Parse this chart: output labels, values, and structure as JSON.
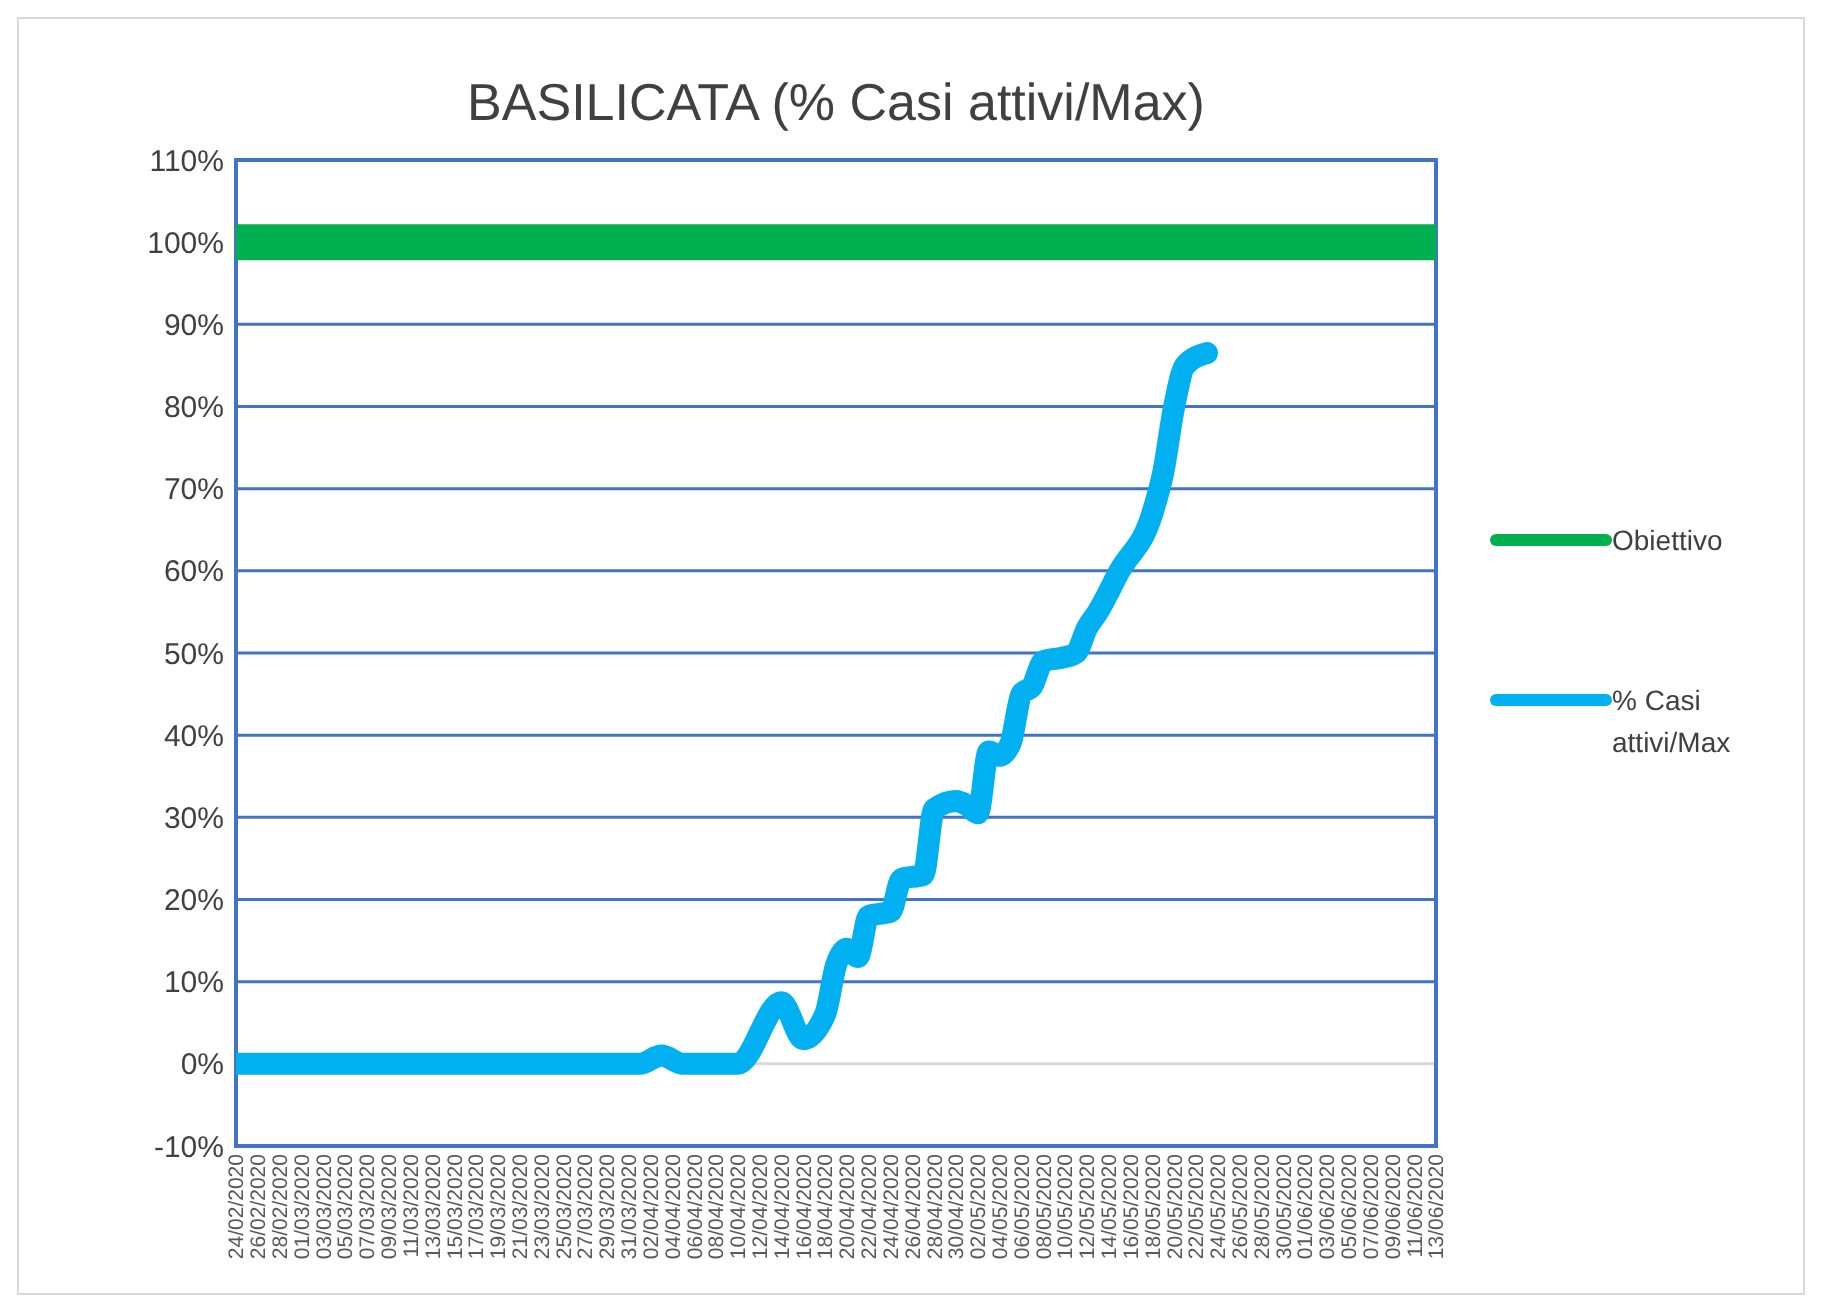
{
  "chart_data": {
    "type": "line",
    "title": "BASILICATA (% Casi attivi/Max)",
    "xlim": [
      "2020-02-24",
      "2020-06-13"
    ],
    "xticks": [
      {
        "value": "2020-02-24",
        "label": "24/02/2020"
      },
      {
        "value": "2020-02-26",
        "label": "26/02/2020"
      },
      {
        "value": "2020-02-28",
        "label": "28/02/2020"
      },
      {
        "value": "2020-03-01",
        "label": "01/03/2020"
      },
      {
        "value": "2020-03-03",
        "label": "03/03/2020"
      },
      {
        "value": "2020-03-05",
        "label": "05/03/2020"
      },
      {
        "value": "2020-03-07",
        "label": "07/03/2020"
      },
      {
        "value": "2020-03-09",
        "label": "09/03/2020"
      },
      {
        "value": "2020-03-11",
        "label": "11/03/2020"
      },
      {
        "value": "2020-03-13",
        "label": "13/03/2020"
      },
      {
        "value": "2020-03-15",
        "label": "15/03/2020"
      },
      {
        "value": "2020-03-17",
        "label": "17/03/2020"
      },
      {
        "value": "2020-03-19",
        "label": "19/03/2020"
      },
      {
        "value": "2020-03-21",
        "label": "21/03/2020"
      },
      {
        "value": "2020-03-23",
        "label": "23/03/2020"
      },
      {
        "value": "2020-03-25",
        "label": "25/03/2020"
      },
      {
        "value": "2020-03-27",
        "label": "27/03/2020"
      },
      {
        "value": "2020-03-29",
        "label": "29/03/2020"
      },
      {
        "value": "2020-03-31",
        "label": "31/03/2020"
      },
      {
        "value": "2020-04-02",
        "label": "02/04/2020"
      },
      {
        "value": "2020-04-04",
        "label": "04/04/2020"
      },
      {
        "value": "2020-04-06",
        "label": "06/04/2020"
      },
      {
        "value": "2020-04-08",
        "label": "08/04/2020"
      },
      {
        "value": "2020-04-10",
        "label": "10/04/2020"
      },
      {
        "value": "2020-04-12",
        "label": "12/04/2020"
      },
      {
        "value": "2020-04-14",
        "label": "14/04/2020"
      },
      {
        "value": "2020-04-16",
        "label": "16/04/2020"
      },
      {
        "value": "2020-04-18",
        "label": "18/04/2020"
      },
      {
        "value": "2020-04-20",
        "label": "20/04/2020"
      },
      {
        "value": "2020-04-22",
        "label": "22/04/2020"
      },
      {
        "value": "2020-04-24",
        "label": "24/04/2020"
      },
      {
        "value": "2020-04-26",
        "label": "26/04/2020"
      },
      {
        "value": "2020-04-28",
        "label": "28/04/2020"
      },
      {
        "value": "2020-04-30",
        "label": "30/04/2020"
      },
      {
        "value": "2020-05-02",
        "label": "02/05/2020"
      },
      {
        "value": "2020-05-04",
        "label": "04/05/2020"
      },
      {
        "value": "2020-05-06",
        "label": "06/05/2020"
      },
      {
        "value": "2020-05-08",
        "label": "08/05/2020"
      },
      {
        "value": "2020-05-10",
        "label": "10/05/2020"
      },
      {
        "value": "2020-05-12",
        "label": "12/05/2020"
      },
      {
        "value": "2020-05-14",
        "label": "14/05/2020"
      },
      {
        "value": "2020-05-16",
        "label": "16/05/2020"
      },
      {
        "value": "2020-05-18",
        "label": "18/05/2020"
      },
      {
        "value": "2020-05-20",
        "label": "20/05/2020"
      },
      {
        "value": "2020-05-22",
        "label": "22/05/2020"
      },
      {
        "value": "2020-05-24",
        "label": "24/05/2020"
      },
      {
        "value": "2020-05-26",
        "label": "26/05/2020"
      },
      {
        "value": "2020-05-28",
        "label": "28/05/2020"
      },
      {
        "value": "2020-05-30",
        "label": "30/05/2020"
      },
      {
        "value": "2020-06-01",
        "label": "01/06/2020"
      },
      {
        "value": "2020-06-03",
        "label": "03/06/2020"
      },
      {
        "value": "2020-06-05",
        "label": "05/06/2020"
      },
      {
        "value": "2020-06-07",
        "label": "07/06/2020"
      },
      {
        "value": "2020-06-09",
        "label": "09/06/2020"
      },
      {
        "value": "2020-06-11",
        "label": "11/06/2020"
      },
      {
        "value": "2020-06-13",
        "label": "13/06/2020"
      }
    ],
    "ylim": [
      -10,
      110
    ],
    "yticks": [
      {
        "value": -10,
        "label": "-10%"
      },
      {
        "value": 0,
        "label": "0%"
      },
      {
        "value": 10,
        "label": "10%"
      },
      {
        "value": 20,
        "label": "20%"
      },
      {
        "value": 30,
        "label": "30%"
      },
      {
        "value": 40,
        "label": "40%"
      },
      {
        "value": 50,
        "label": "50%"
      },
      {
        "value": 60,
        "label": "60%"
      },
      {
        "value": 70,
        "label": "70%"
      },
      {
        "value": 80,
        "label": "80%"
      },
      {
        "value": 90,
        "label": "90%"
      },
      {
        "value": 100,
        "label": "100%"
      },
      {
        "value": 110,
        "label": "110%"
      }
    ],
    "grid": "y",
    "legend": "right",
    "line_style": "solid",
    "series": [
      {
        "name": "Obiettivo",
        "color": "#00b050",
        "x": [
          "2020-02-24",
          "2020-06-13"
        ],
        "values": [
          100,
          100
        ]
      },
      {
        "name": "% Casi attivi/Max",
        "color": "#00b0f0",
        "x": [
          "2020-02-24",
          "2020-04-01",
          "2020-04-03",
          "2020-04-05",
          "2020-04-10",
          "2020-04-14",
          "2020-04-16",
          "2020-04-18",
          "2020-04-19",
          "2020-04-20",
          "2020-04-21",
          "2020-04-22",
          "2020-04-24",
          "2020-04-25",
          "2020-04-27",
          "2020-04-28",
          "2020-04-30",
          "2020-05-01",
          "2020-05-02",
          "2020-05-03",
          "2020-05-04",
          "2020-05-05",
          "2020-05-06",
          "2020-05-07",
          "2020-05-08",
          "2020-05-10",
          "2020-05-11",
          "2020-05-12",
          "2020-05-13",
          "2020-05-15",
          "2020-05-18",
          "2020-05-19",
          "2020-05-20",
          "2020-05-21",
          "2020-05-23"
        ],
        "values": [
          0,
          0,
          1,
          0,
          0,
          7.5,
          3,
          6,
          12,
          14,
          13,
          18,
          18.5,
          22.5,
          23,
          31,
          32,
          31.5,
          30.5,
          38,
          37.5,
          39,
          45,
          46,
          49,
          49.5,
          50,
          53,
          55,
          60,
          67,
          72,
          80,
          85,
          86.5
        ]
      }
    ]
  }
}
